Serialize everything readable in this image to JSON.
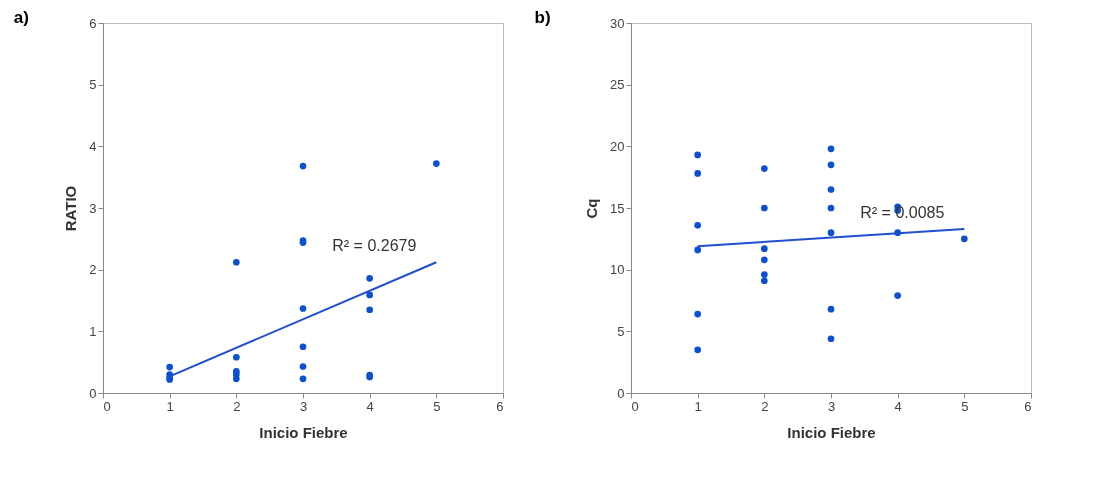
{
  "chart_data": [
    {
      "type": "scatter",
      "title": "a)",
      "xlabel": "Inicio Fiebre",
      "ylabel": "RATIO",
      "xlim": [
        0,
        6
      ],
      "xticks": [
        0,
        1,
        2,
        3,
        4,
        5,
        6
      ],
      "ylim": [
        0,
        6
      ],
      "yticks": [
        0,
        1,
        2,
        3,
        4,
        5,
        6
      ],
      "grid": false,
      "series": [
        {
          "color": "#0b50d0",
          "marker": "circle",
          "x": [
            1,
            1,
            1,
            1,
            2,
            2,
            2,
            2,
            2,
            3,
            3,
            3,
            3,
            3,
            3,
            3,
            4,
            4,
            4,
            4,
            4,
            5
          ],
          "values": [
            0.42,
            0.3,
            0.25,
            0.22,
            2.12,
            0.58,
            0.35,
            0.3,
            0.23,
            3.68,
            2.47,
            2.44,
            1.37,
            0.75,
            0.43,
            0.23,
            1.86,
            1.59,
            1.35,
            0.29,
            0.26,
            3.72
          ]
        },
        {
          "type": "line",
          "marker": "none",
          "color": "#1f4fd0",
          "x": [
            1,
            5
          ],
          "values": [
            0.27,
            2.12
          ]
        }
      ],
      "annotations": [
        "R² = 0.2679"
      ]
    },
    {
      "type": "scatter",
      "title": "b)",
      "xlabel": "Inicio Fiebre",
      "ylabel": "Cq",
      "xlim": [
        0,
        6
      ],
      "xticks": [
        0,
        1,
        2,
        3,
        4,
        5,
        6
      ],
      "ylim": [
        0,
        30
      ],
      "yticks": [
        0,
        5,
        10,
        15,
        20,
        25,
        30
      ],
      "grid": false,
      "series": [
        {
          "color": "#0b50d0",
          "marker": "circle",
          "x": [
            1,
            1,
            1,
            1,
            1,
            1,
            2,
            2,
            2,
            2,
            2,
            2,
            3,
            3,
            3,
            3,
            3,
            3,
            3,
            4,
            4,
            4,
            4,
            5
          ],
          "values": [
            19.3,
            17.8,
            13.6,
            11.6,
            6.4,
            3.5,
            18.2,
            15.0,
            11.7,
            10.8,
            9.6,
            9.1,
            19.8,
            18.5,
            16.5,
            15.0,
            13.0,
            6.8,
            4.4,
            15.1,
            14.8,
            13.0,
            7.9,
            12.5
          ]
        },
        {
          "type": "line",
          "marker": "none",
          "color": "#1f4fd0",
          "x": [
            1,
            5
          ],
          "values": [
            11.9,
            13.3
          ]
        }
      ],
      "annotations": [
        "R² = 0.0085"
      ]
    }
  ]
}
